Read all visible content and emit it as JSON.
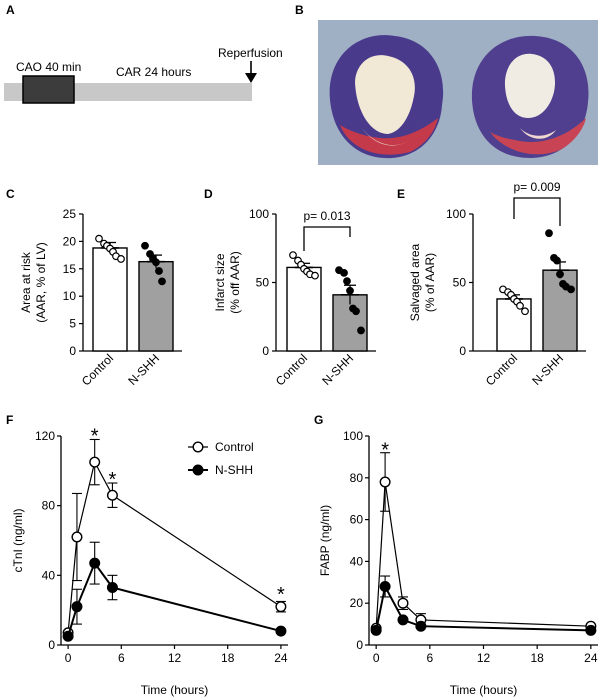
{
  "panel_labels": {
    "A": "A",
    "B": "B",
    "C": "C",
    "D": "D",
    "E": "E",
    "F": "F",
    "G": "G"
  },
  "protocol": {
    "cao_label": "CAO 40 min",
    "car_label": "CAR 24 hours",
    "reperfusion_label": "Reperfusion"
  },
  "colors": {
    "control_bar": "#ffffff",
    "nshh_bar": "#a0a0a0",
    "timeline_bar": "#c8c8c8",
    "cao_box": "#3c3c3c",
    "photo_bg": "#9fb0c4"
  },
  "chart_data": [
    {
      "id": "C",
      "type": "bar",
      "ylabel": [
        "Area at risk",
        "(AAR, % of LV)"
      ],
      "categories": [
        "Control",
        "N-SHH"
      ],
      "ylim": [
        0,
        25
      ],
      "yticks": [
        0,
        5,
        10,
        15,
        20,
        25
      ],
      "means": [
        18.8,
        16.3
      ],
      "sem": [
        1.0,
        1.2
      ],
      "points": [
        [
          20.5,
          19.6,
          19.2,
          18.7,
          18.1,
          17.3,
          16.8
        ],
        [
          19.2,
          17.7,
          16.8,
          16.2,
          14.6,
          12.7
        ]
      ]
    },
    {
      "id": "D",
      "type": "bar",
      "ylabel": [
        "Infarct size",
        "(% off AAR)"
      ],
      "categories": [
        "Control",
        "N-SHH"
      ],
      "ylim": [
        0,
        100
      ],
      "yticks": [
        0,
        50,
        100
      ],
      "means": [
        61,
        41
      ],
      "sem": [
        3,
        7
      ],
      "points": [
        [
          70,
          66,
          63,
          60,
          58,
          56,
          55
        ],
        [
          59,
          57,
          51,
          44,
          31,
          29,
          15
        ]
      ],
      "pvalue": "p= 0.013"
    },
    {
      "id": "E",
      "type": "bar",
      "ylabel": [
        "Salvaged area",
        "(% of AAR)"
      ],
      "categories": [
        "Control",
        "N-SHH"
      ],
      "ylim": [
        0,
        100
      ],
      "yticks": [
        0,
        50,
        100
      ],
      "means": [
        38,
        59
      ],
      "sem": [
        3,
        6
      ],
      "points": [
        [
          45,
          43,
          41,
          38,
          36,
          33,
          29
        ],
        [
          86,
          68,
          66,
          56,
          49,
          47,
          45
        ]
      ],
      "pvalue": "p= 0.009"
    },
    {
      "id": "F",
      "type": "line",
      "ylabel": "cTnI (ng/ml)",
      "xlabel": "Time (hours)",
      "xlim": [
        -0.8,
        24.8
      ],
      "ylim": [
        0,
        120
      ],
      "xticks": [
        0,
        6,
        12,
        18,
        24
      ],
      "yticks": [
        0,
        40,
        80,
        120
      ],
      "legend": [
        "Control",
        "N-SHH"
      ],
      "series": [
        {
          "name": "Control",
          "x": [
            0,
            1,
            3,
            5,
            24
          ],
          "y": [
            7,
            62,
            105,
            86,
            22
          ],
          "err": [
            0,
            25,
            13,
            7,
            3
          ],
          "filled": false
        },
        {
          "name": "N-SHH",
          "x": [
            0,
            1,
            3,
            5,
            24
          ],
          "y": [
            5,
            22,
            47,
            33,
            8
          ],
          "err": [
            0,
            10,
            12,
            7,
            0
          ],
          "filled": true
        }
      ],
      "stars": [
        {
          "x": 3,
          "y": 121
        },
        {
          "x": 5,
          "y": 96
        },
        {
          "x": 24,
          "y": 30
        }
      ],
      "star_label": "*"
    },
    {
      "id": "G",
      "type": "line",
      "ylabel": "FABP (ng/ml)",
      "xlabel": "Time (hours)",
      "xlim": [
        -0.8,
        24.8
      ],
      "ylim": [
        0,
        100
      ],
      "xticks": [
        0,
        6,
        12,
        18,
        24
      ],
      "yticks": [
        0,
        20,
        40,
        60,
        80,
        100
      ],
      "series": [
        {
          "name": "Control",
          "x": [
            0,
            1,
            3,
            5,
            24
          ],
          "y": [
            8,
            78,
            20,
            12,
            9
          ],
          "err": [
            0,
            14,
            3,
            3,
            0
          ],
          "filled": false
        },
        {
          "name": "N-SHH",
          "x": [
            0,
            1,
            3,
            5,
            24
          ],
          "y": [
            7,
            28,
            12,
            9,
            7
          ],
          "err": [
            0,
            5,
            0,
            0,
            0
          ],
          "filled": true
        }
      ],
      "stars": [
        {
          "x": 1,
          "y": 94
        }
      ],
      "star_label": "*"
    }
  ]
}
